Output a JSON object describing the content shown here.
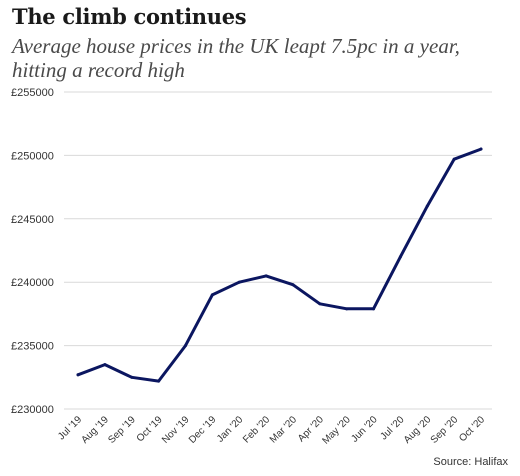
{
  "header": {
    "title": "The climb continues",
    "subtitle": "Average house prices in the UK leapt 7.5pc in a year, hitting a record high"
  },
  "source": "Source: Halifax",
  "colors": {
    "line": "#0b1660",
    "grid": "#d9d9d9",
    "text": "#333333"
  },
  "chart_data": {
    "type": "line",
    "title": "The climb continues",
    "subtitle": "Average house prices in the UK leapt 7.5pc in a year, hitting a record high",
    "xlabel": "",
    "ylabel": "",
    "categories": [
      "Jul '19",
      "Aug '19",
      "Sep '19",
      "Oct '19",
      "Nov '19",
      "Dec '19",
      "Jan '20",
      "Feb '20",
      "Mar '20",
      "Apr '20",
      "May '20",
      "Jun '20",
      "Jul '20",
      "Aug '20",
      "Sep '20",
      "Oct '20"
    ],
    "series": [
      {
        "values": [
          232700,
          233500,
          232500,
          232200,
          235000,
          239000,
          240000,
          240500,
          239800,
          238300,
          237900,
          237900,
          242000,
          246000,
          249700,
          250500
        ]
      }
    ],
    "ylim": [
      230000,
      255000
    ],
    "yticks": [
      230000,
      235000,
      240000,
      245000,
      250000,
      255000
    ],
    "ytick_labels": [
      "£230000",
      "£235000",
      "£240000",
      "£245000",
      "£250000",
      "£255000"
    ],
    "grid": true,
    "legend": "none"
  }
}
